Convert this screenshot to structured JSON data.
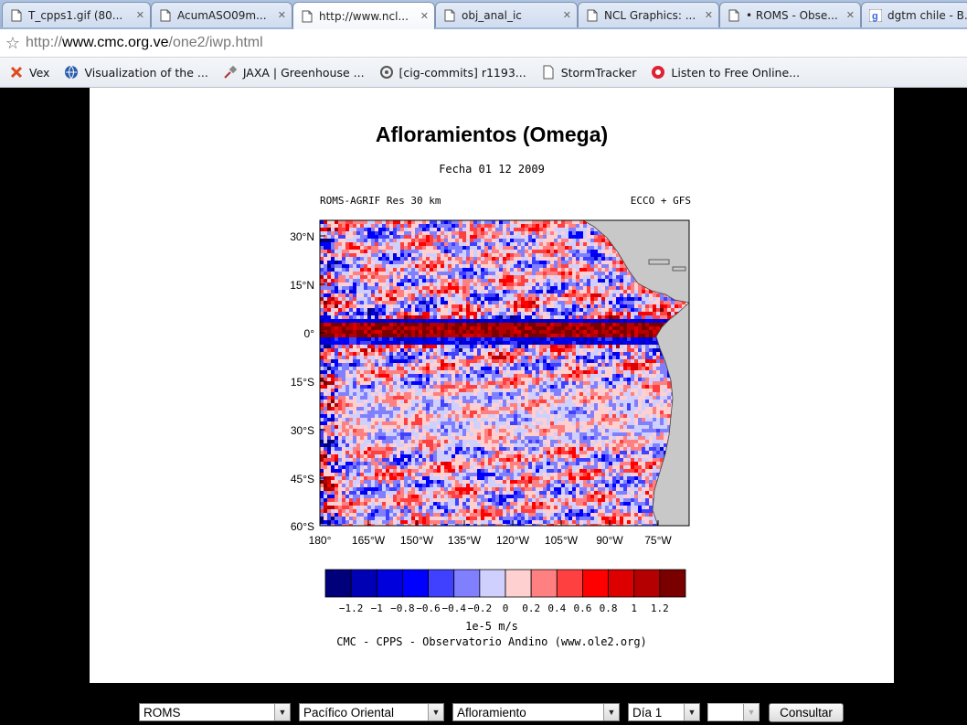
{
  "tabs": [
    {
      "title": "T_cpps1.gif (80...",
      "icon": "page-icon"
    },
    {
      "title": "AcumASO09m...",
      "icon": "page-icon"
    },
    {
      "title": "http://www.ncl...",
      "icon": "page-icon"
    },
    {
      "title": "obj_anal_ic",
      "icon": "page-icon"
    },
    {
      "title": "NCL Graphics: ...",
      "icon": "page-icon"
    },
    {
      "title": "• ROMS - Obse...",
      "icon": "page-icon"
    },
    {
      "title": "dgtm chile - B...",
      "icon": "google-icon"
    }
  ],
  "address": {
    "scheme": "http://",
    "host": "www.cmc.org.ve",
    "path": "/one2/iwp.html"
  },
  "bookmarks": [
    {
      "label": "Vex",
      "icon": "vex-x-icon"
    },
    {
      "label": "Visualization of the ...",
      "icon": "globe-icon"
    },
    {
      "label": "JAXA | Greenhouse ...",
      "icon": "satellite-icon"
    },
    {
      "label": "[cig-commits] r1193...",
      "icon": "mail-icon"
    },
    {
      "label": "StormTracker",
      "icon": "page-icon"
    },
    {
      "label": "Listen to Free Online...",
      "icon": "radio-icon"
    }
  ],
  "figure": {
    "title": "Afloramientos (Omega)",
    "subtitle": "Fecha 01 12 2009",
    "left_label": "ROMS-AGRIF Res 30 km",
    "right_label": "ECCO + GFS",
    "units": "1e-5 m/s",
    "credit": "CMC - CPPS - Observatorio Andino (www.ole2.org)",
    "lat_ticks": [
      "30°N",
      "15°N",
      "0°",
      "15°S",
      "30°S",
      "45°S",
      "60°S"
    ],
    "lon_ticks": [
      "180°",
      "165°W",
      "150°W",
      "135°W",
      "120°W",
      "105°W",
      "90°W",
      "75°W"
    ],
    "colorbar_ticks": [
      "−1.2",
      "−1",
      "−0.8",
      "−0.6",
      "−0.4",
      "−0.2",
      "0",
      "0.2",
      "0.4",
      "0.6",
      "0.8",
      "1",
      "1.2"
    ],
    "colorbar_colors": [
      "#00007a",
      "#0000b4",
      "#0000dc",
      "#0000ff",
      "#4040ff",
      "#8080ff",
      "#d0d0ff",
      "#ffd0d0",
      "#ff8080",
      "#ff4040",
      "#ff0000",
      "#dc0000",
      "#b40000",
      "#7a0000"
    ],
    "land_color": "#c8c8c8"
  },
  "controls": {
    "model": "ROMS",
    "region": "Pacífico Oriental",
    "variable": "Afloramiento",
    "day": "Día 1",
    "extra": "",
    "submit": "Consultar"
  }
}
